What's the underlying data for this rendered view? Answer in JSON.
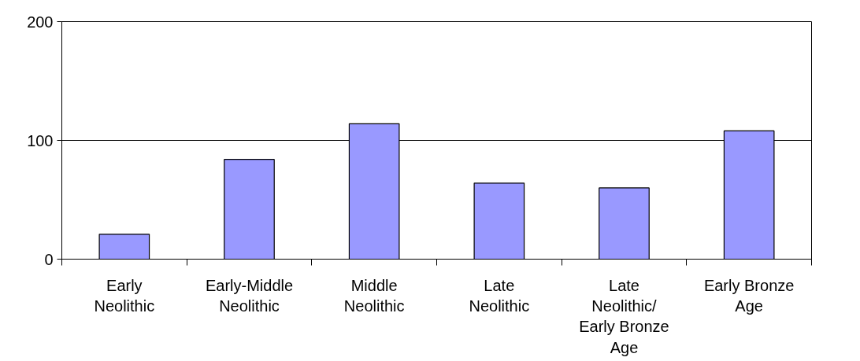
{
  "chart_data": {
    "type": "bar",
    "categories": [
      "Early Neolithic",
      "Early-Middle Neolithic",
      "Middle Neolithic",
      "Late Neolithic",
      "Late Neolithic/ Early Bronze Age",
      "Early Bronze Age"
    ],
    "values": [
      21,
      84,
      114,
      64,
      60,
      108
    ],
    "color": "#9999ff",
    "ylim": [
      0,
      200
    ],
    "yticks": [
      0,
      100,
      200
    ],
    "grid": "y"
  }
}
